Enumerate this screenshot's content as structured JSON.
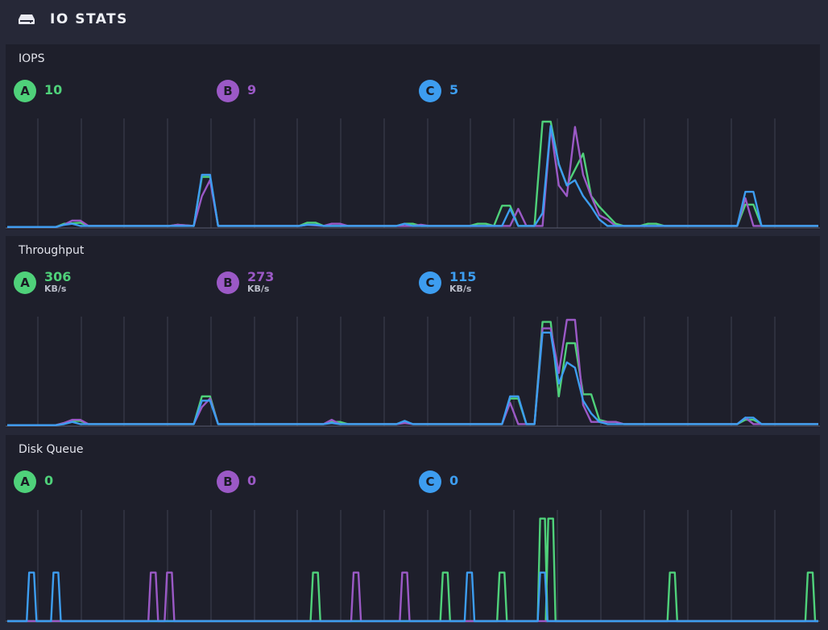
{
  "header": {
    "title": "IO STATS",
    "icon": "disk-icon"
  },
  "colors": {
    "A": "#4fd17a",
    "B": "#9b59c6",
    "C": "#3d9df0",
    "grid": "#3e4152",
    "baseline": "#5a5d70"
  },
  "panels": [
    {
      "label": "IOPS",
      "stats": [
        {
          "id": "A",
          "value": "10",
          "unit": ""
        },
        {
          "id": "B",
          "value": "9",
          "unit": ""
        },
        {
          "id": "C",
          "value": "5",
          "unit": ""
        }
      ]
    },
    {
      "label": "Throughput",
      "stats": [
        {
          "id": "A",
          "value": "306",
          "unit": "KB/s"
        },
        {
          "id": "B",
          "value": "273",
          "unit": "KB/s"
        },
        {
          "id": "C",
          "value": "115",
          "unit": "KB/s"
        }
      ]
    },
    {
      "label": "Disk Queue",
      "stats": [
        {
          "id": "A",
          "value": "0",
          "unit": ""
        },
        {
          "id": "B",
          "value": "0",
          "unit": ""
        },
        {
          "id": "C",
          "value": "0",
          "unit": ""
        }
      ]
    }
  ],
  "chart_data": [
    {
      "type": "line",
      "title": "IOPS",
      "x": [
        0,
        100
      ],
      "ylim": [
        0,
        100
      ],
      "series": [
        {
          "name": "A",
          "points": [
            [
              0,
              1
            ],
            [
              6,
              1
            ],
            [
              7,
              4
            ],
            [
              9,
              5
            ],
            [
              10,
              2
            ],
            [
              20,
              2
            ],
            [
              21,
              3
            ],
            [
              23,
              2
            ],
            [
              24,
              48
            ],
            [
              25,
              48
            ],
            [
              26,
              2
            ],
            [
              36,
              2
            ],
            [
              37,
              5
            ],
            [
              38,
              5
            ],
            [
              39,
              2
            ],
            [
              48,
              2
            ],
            [
              49,
              4
            ],
            [
              50,
              4
            ],
            [
              51,
              2
            ],
            [
              57,
              2
            ],
            [
              58,
              4
            ],
            [
              59,
              4
            ],
            [
              60,
              2
            ],
            [
              61,
              21
            ],
            [
              62,
              21
            ],
            [
              63,
              2
            ],
            [
              65,
              2
            ],
            [
              66,
              100
            ],
            [
              67,
              100
            ],
            [
              68,
              60
            ],
            [
              69,
              40
            ],
            [
              70,
              55
            ],
            [
              71,
              70
            ],
            [
              72,
              30
            ],
            [
              73,
              20
            ],
            [
              74,
              12
            ],
            [
              75,
              4
            ],
            [
              76,
              2
            ],
            [
              77,
              2
            ],
            [
              78,
              2
            ],
            [
              79,
              4
            ],
            [
              80,
              4
            ],
            [
              81,
              2
            ],
            [
              90,
              2
            ],
            [
              91,
              22
            ],
            [
              92,
              22
            ],
            [
              93,
              2
            ],
            [
              100,
              2
            ]
          ]
        },
        {
          "name": "B",
          "points": [
            [
              0,
              1
            ],
            [
              6,
              1
            ],
            [
              7,
              3
            ],
            [
              8,
              7
            ],
            [
              9,
              7
            ],
            [
              10,
              2
            ],
            [
              20,
              2
            ],
            [
              21,
              3
            ],
            [
              23,
              2
            ],
            [
              24,
              30
            ],
            [
              25,
              45
            ],
            [
              26,
              2
            ],
            [
              36,
              2
            ],
            [
              37,
              3
            ],
            [
              39,
              2
            ],
            [
              40,
              4
            ],
            [
              41,
              4
            ],
            [
              42,
              2
            ],
            [
              50,
              2
            ],
            [
              51,
              3
            ],
            [
              52,
              2
            ],
            [
              62,
              2
            ],
            [
              63,
              18
            ],
            [
              64,
              2
            ],
            [
              66,
              2
            ],
            [
              67,
              95
            ],
            [
              68,
              40
            ],
            [
              69,
              30
            ],
            [
              70,
              95
            ],
            [
              71,
              50
            ],
            [
              72,
              30
            ],
            [
              73,
              12
            ],
            [
              74,
              8
            ],
            [
              75,
              2
            ],
            [
              90,
              2
            ],
            [
              91,
              28
            ],
            [
              92,
              2
            ],
            [
              100,
              2
            ]
          ]
        },
        {
          "name": "C",
          "points": [
            [
              0,
              1
            ],
            [
              6,
              1
            ],
            [
              7,
              3
            ],
            [
              8,
              4
            ],
            [
              9,
              2
            ],
            [
              20,
              2
            ],
            [
              21,
              2
            ],
            [
              23,
              2
            ],
            [
              24,
              50
            ],
            [
              25,
              50
            ],
            [
              26,
              2
            ],
            [
              36,
              2
            ],
            [
              37,
              3
            ],
            [
              38,
              3
            ],
            [
              39,
              2
            ],
            [
              48,
              2
            ],
            [
              49,
              4
            ],
            [
              50,
              2
            ],
            [
              61,
              2
            ],
            [
              62,
              18
            ],
            [
              63,
              2
            ],
            [
              65,
              2
            ],
            [
              66,
              14
            ],
            [
              67,
              96
            ],
            [
              68,
              60
            ],
            [
              69,
              40
            ],
            [
              70,
              45
            ],
            [
              71,
              30
            ],
            [
              72,
              20
            ],
            [
              73,
              8
            ],
            [
              74,
              2
            ],
            [
              90,
              2
            ],
            [
              91,
              34
            ],
            [
              92,
              34
            ],
            [
              93,
              2
            ],
            [
              100,
              2
            ]
          ]
        }
      ]
    },
    {
      "type": "line",
      "title": "Throughput",
      "x": [
        0,
        100
      ],
      "ylim": [
        0,
        100
      ],
      "series": [
        {
          "name": "A",
          "points": [
            [
              0,
              1
            ],
            [
              6,
              1
            ],
            [
              7,
              3
            ],
            [
              8,
              5
            ],
            [
              9,
              5
            ],
            [
              10,
              2
            ],
            [
              20,
              2
            ],
            [
              21,
              2
            ],
            [
              23,
              2
            ],
            [
              24,
              28
            ],
            [
              25,
              28
            ],
            [
              26,
              2
            ],
            [
              36,
              2
            ],
            [
              37,
              2
            ],
            [
              39,
              2
            ],
            [
              40,
              4
            ],
            [
              41,
              4
            ],
            [
              42,
              2
            ],
            [
              48,
              2
            ],
            [
              49,
              4
            ],
            [
              50,
              2
            ],
            [
              61,
              2
            ],
            [
              62,
              26
            ],
            [
              63,
              26
            ],
            [
              64,
              2
            ],
            [
              65,
              2
            ],
            [
              66,
              98
            ],
            [
              67,
              98
            ],
            [
              68,
              28
            ],
            [
              69,
              78
            ],
            [
              70,
              78
            ],
            [
              71,
              30
            ],
            [
              72,
              30
            ],
            [
              73,
              6
            ],
            [
              74,
              4
            ],
            [
              75,
              4
            ],
            [
              76,
              2
            ],
            [
              90,
              2
            ],
            [
              91,
              6
            ],
            [
              92,
              6
            ],
            [
              93,
              2
            ],
            [
              100,
              2
            ]
          ]
        },
        {
          "name": "B",
          "points": [
            [
              0,
              1
            ],
            [
              6,
              1
            ],
            [
              7,
              3
            ],
            [
              8,
              6
            ],
            [
              9,
              6
            ],
            [
              10,
              2
            ],
            [
              20,
              2
            ],
            [
              21,
              2
            ],
            [
              23,
              2
            ],
            [
              24,
              18
            ],
            [
              25,
              26
            ],
            [
              26,
              2
            ],
            [
              36,
              2
            ],
            [
              37,
              2
            ],
            [
              39,
              2
            ],
            [
              40,
              6
            ],
            [
              41,
              2
            ],
            [
              48,
              2
            ],
            [
              49,
              3
            ],
            [
              50,
              2
            ],
            [
              61,
              2
            ],
            [
              62,
              22
            ],
            [
              63,
              2
            ],
            [
              65,
              2
            ],
            [
              66,
              92
            ],
            [
              67,
              92
            ],
            [
              68,
              50
            ],
            [
              69,
              100
            ],
            [
              70,
              100
            ],
            [
              71,
              20
            ],
            [
              72,
              4
            ],
            [
              75,
              4
            ],
            [
              76,
              2
            ],
            [
              90,
              2
            ],
            [
              91,
              8
            ],
            [
              92,
              2
            ],
            [
              100,
              2
            ]
          ]
        },
        {
          "name": "C",
          "points": [
            [
              0,
              1
            ],
            [
              6,
              1
            ],
            [
              7,
              2
            ],
            [
              8,
              4
            ],
            [
              9,
              2
            ],
            [
              20,
              2
            ],
            [
              21,
              2
            ],
            [
              23,
              2
            ],
            [
              24,
              24
            ],
            [
              25,
              24
            ],
            [
              26,
              2
            ],
            [
              36,
              2
            ],
            [
              37,
              2
            ],
            [
              39,
              2
            ],
            [
              40,
              3
            ],
            [
              41,
              2
            ],
            [
              48,
              2
            ],
            [
              49,
              5
            ],
            [
              50,
              2
            ],
            [
              61,
              2
            ],
            [
              62,
              28
            ],
            [
              63,
              28
            ],
            [
              64,
              2
            ],
            [
              65,
              2
            ],
            [
              66,
              88
            ],
            [
              67,
              88
            ],
            [
              68,
              40
            ],
            [
              69,
              60
            ],
            [
              70,
              55
            ],
            [
              71,
              24
            ],
            [
              72,
              12
            ],
            [
              73,
              4
            ],
            [
              74,
              2
            ],
            [
              90,
              2
            ],
            [
              91,
              8
            ],
            [
              92,
              8
            ],
            [
              93,
              2
            ],
            [
              100,
              2
            ]
          ]
        }
      ]
    },
    {
      "type": "line",
      "title": "Disk Queue",
      "x": [
        0,
        100
      ],
      "ylim": [
        0,
        100
      ],
      "series": [
        {
          "name": "A",
          "spikes": [
            [
              38,
              45
            ],
            [
              54,
              45
            ],
            [
              61,
              45
            ],
            [
              66,
              95
            ],
            [
              67,
              95
            ],
            [
              82,
              45
            ],
            [
              99,
              45
            ]
          ]
        },
        {
          "name": "B",
          "spikes": [
            [
              18,
              45
            ],
            [
              20,
              45
            ],
            [
              43,
              45
            ],
            [
              49,
              45
            ]
          ]
        },
        {
          "name": "C",
          "spikes": [
            [
              3,
              45
            ],
            [
              6,
              45
            ],
            [
              57,
              45
            ],
            [
              66,
              45
            ]
          ]
        }
      ]
    }
  ]
}
